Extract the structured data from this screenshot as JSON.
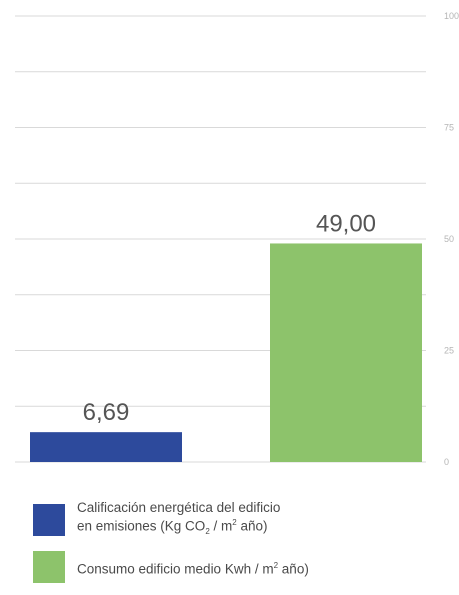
{
  "chart_data": {
    "type": "bar",
    "categories": [
      "Calificación energética del edificio en emisiones (Kg CO2 / m2 año)",
      "Consumo edificio medio Kwh / m2 año)"
    ],
    "values": [
      6.69,
      49.0
    ],
    "value_labels": [
      "6,69",
      "49,00"
    ],
    "colors": [
      "#2d4a9c",
      "#8dc36b"
    ],
    "ylim": [
      0,
      100
    ],
    "yticks": [
      0,
      25,
      50,
      75,
      100
    ],
    "ytick_labels": [
      "0",
      "25",
      "50",
      "75",
      "100"
    ],
    "grid": true,
    "legend_position": "bottom"
  },
  "legend": {
    "items": [
      {
        "color": "#2d4a9c",
        "line1": "Calificación energética del edificio",
        "line2_prefix": "en emisiones (Kg CO",
        "line2_sub": "2",
        "line2_mid": " / m",
        "line2_sup": "2",
        "line2_suffix": " año)"
      },
      {
        "color": "#8dc36b",
        "prefix": "Consumo edificio medio Kwh / m",
        "sup": "2",
        "suffix": " año)"
      }
    ]
  }
}
